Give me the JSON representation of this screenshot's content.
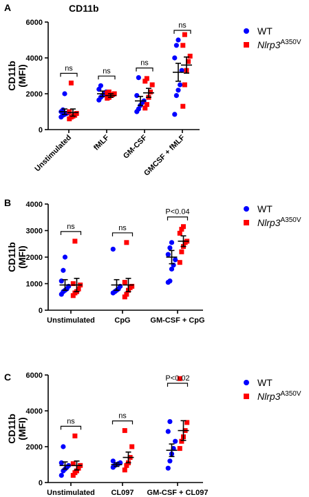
{
  "chart_data": [
    {
      "type": "scatter",
      "panel": "A",
      "title": "CD11b",
      "ylabel_line1": "CD11b",
      "ylabel_line2": "(MFI)",
      "ylim": [
        0,
        6000
      ],
      "yticks": [
        0,
        2000,
        4000,
        6000
      ],
      "categories": [
        "Unstimulated",
        "fMLF",
        "GM-CSF",
        "GMCSF + fMLF"
      ],
      "series": [
        {
          "name": "WT",
          "color": "#0000ff",
          "marker": "circle",
          "points": [
            [
              700,
              800,
              850,
              900,
              950,
              1000,
              1100,
              2000
            ],
            [
              1650,
              1800,
              1900,
              2000,
              2100,
              2250,
              2450
            ],
            [
              1000,
              1150,
              1350,
              1500,
              1600,
              1900,
              2900
            ],
            [
              850,
              1900,
              2200,
              2500,
              3300,
              4000,
              4700,
              5000
            ]
          ],
          "mean": [
            1000,
            2000,
            1600,
            3200
          ],
          "sem": [
            150,
            150,
            250,
            500
          ]
        },
        {
          "name_base": "Nlrp3",
          "name_sup": "A350V",
          "color": "#ff0000",
          "marker": "square",
          "points": [
            [
              600,
              700,
              750,
              800,
              900,
              1000,
              2600
            ],
            [
              1750,
              1800,
              1900,
              1950,
              2000,
              2050,
              2100
            ],
            [
              1200,
              1400,
              1800,
              2100,
              2500,
              2700,
              2850
            ],
            [
              1300,
              2500,
              3300,
              3800,
              4100,
              4700,
              5300
            ]
          ],
          "mean": [
            950,
            1900,
            2050,
            3600
          ],
          "sem": [
            200,
            100,
            250,
            450
          ]
        }
      ],
      "significance": [
        "ns",
        "ns",
        "ns",
        "ns"
      ]
    },
    {
      "type": "scatter",
      "panel": "B",
      "title": "",
      "ylabel_line1": "CD11b",
      "ylabel_line2": "(MFI)",
      "ylim": [
        0,
        4000
      ],
      "yticks": [
        0,
        1000,
        2000,
        3000,
        4000
      ],
      "categories": [
        "Unstimulated",
        "CpG",
        "GM-CSF + CpG"
      ],
      "series": [
        {
          "name": "WT",
          "color": "#0000ff",
          "marker": "circle",
          "points": [
            [
              600,
              700,
              750,
              800,
              900,
              1100,
              1500,
              2000
            ],
            [
              650,
              700,
              750,
              800,
              900,
              2300
            ],
            [
              1050,
              1100,
              1550,
              1700,
              1900,
              2100,
              2350,
              2550
            ]
          ],
          "mean": [
            950,
            950,
            2000
          ],
          "sem": [
            200,
            200,
            250
          ]
        },
        {
          "name_base": "Nlrp3",
          "name_sup": "A350V",
          "color": "#ff0000",
          "marker": "square",
          "points": [
            [
              550,
              650,
              700,
              800,
              950,
              1000,
              2600
            ],
            [
              500,
              600,
              750,
              850,
              900,
              1050,
              2550
            ],
            [
              1800,
              2200,
              2400,
              2550,
              2600,
              2900,
              3050,
              3150
            ]
          ],
          "mean": [
            950,
            950,
            2600
          ],
          "sem": [
            250,
            250,
            200
          ]
        }
      ],
      "significance": [
        "ns",
        "ns",
        "P<0.04"
      ]
    },
    {
      "type": "scatter",
      "panel": "C",
      "title": "",
      "ylabel_line1": "CD11b",
      "ylabel_line2": "(MFI)",
      "ylim": [
        0,
        6000
      ],
      "yticks": [
        0,
        2000,
        4000,
        6000
      ],
      "categories": [
        "Unstimulated",
        "CL097",
        "GM-CSF + CL097"
      ],
      "series": [
        {
          "name": "WT",
          "color": "#0000ff",
          "marker": "circle",
          "points": [
            [
              400,
              650,
              750,
              850,
              950,
              1100,
              2000
            ],
            [
              850,
              950,
              1000,
              1050,
              1100,
              1200
            ],
            [
              800,
              1200,
              1600,
              1900,
              2300,
              2850,
              3400
            ]
          ],
          "mean": [
            950,
            1000,
            1800
          ],
          "sem": [
            200,
            100,
            350
          ]
        },
        {
          "name_base": "Nlrp3",
          "name_sup": "A350V",
          "color": "#ff0000",
          "marker": "square",
          "points": [
            [
              400,
              550,
              650,
              800,
              950,
              1050,
              2600
            ],
            [
              700,
              950,
              1100,
              1400,
              2000,
              2900
            ],
            [
              1900,
              2300,
              2550,
              2900,
              3350,
              5800
            ]
          ],
          "mean": [
            950,
            1400,
            2900
          ],
          "sem": [
            250,
            300,
            550
          ]
        }
      ],
      "significance": [
        "ns",
        "ns",
        "P<0.02"
      ]
    }
  ]
}
